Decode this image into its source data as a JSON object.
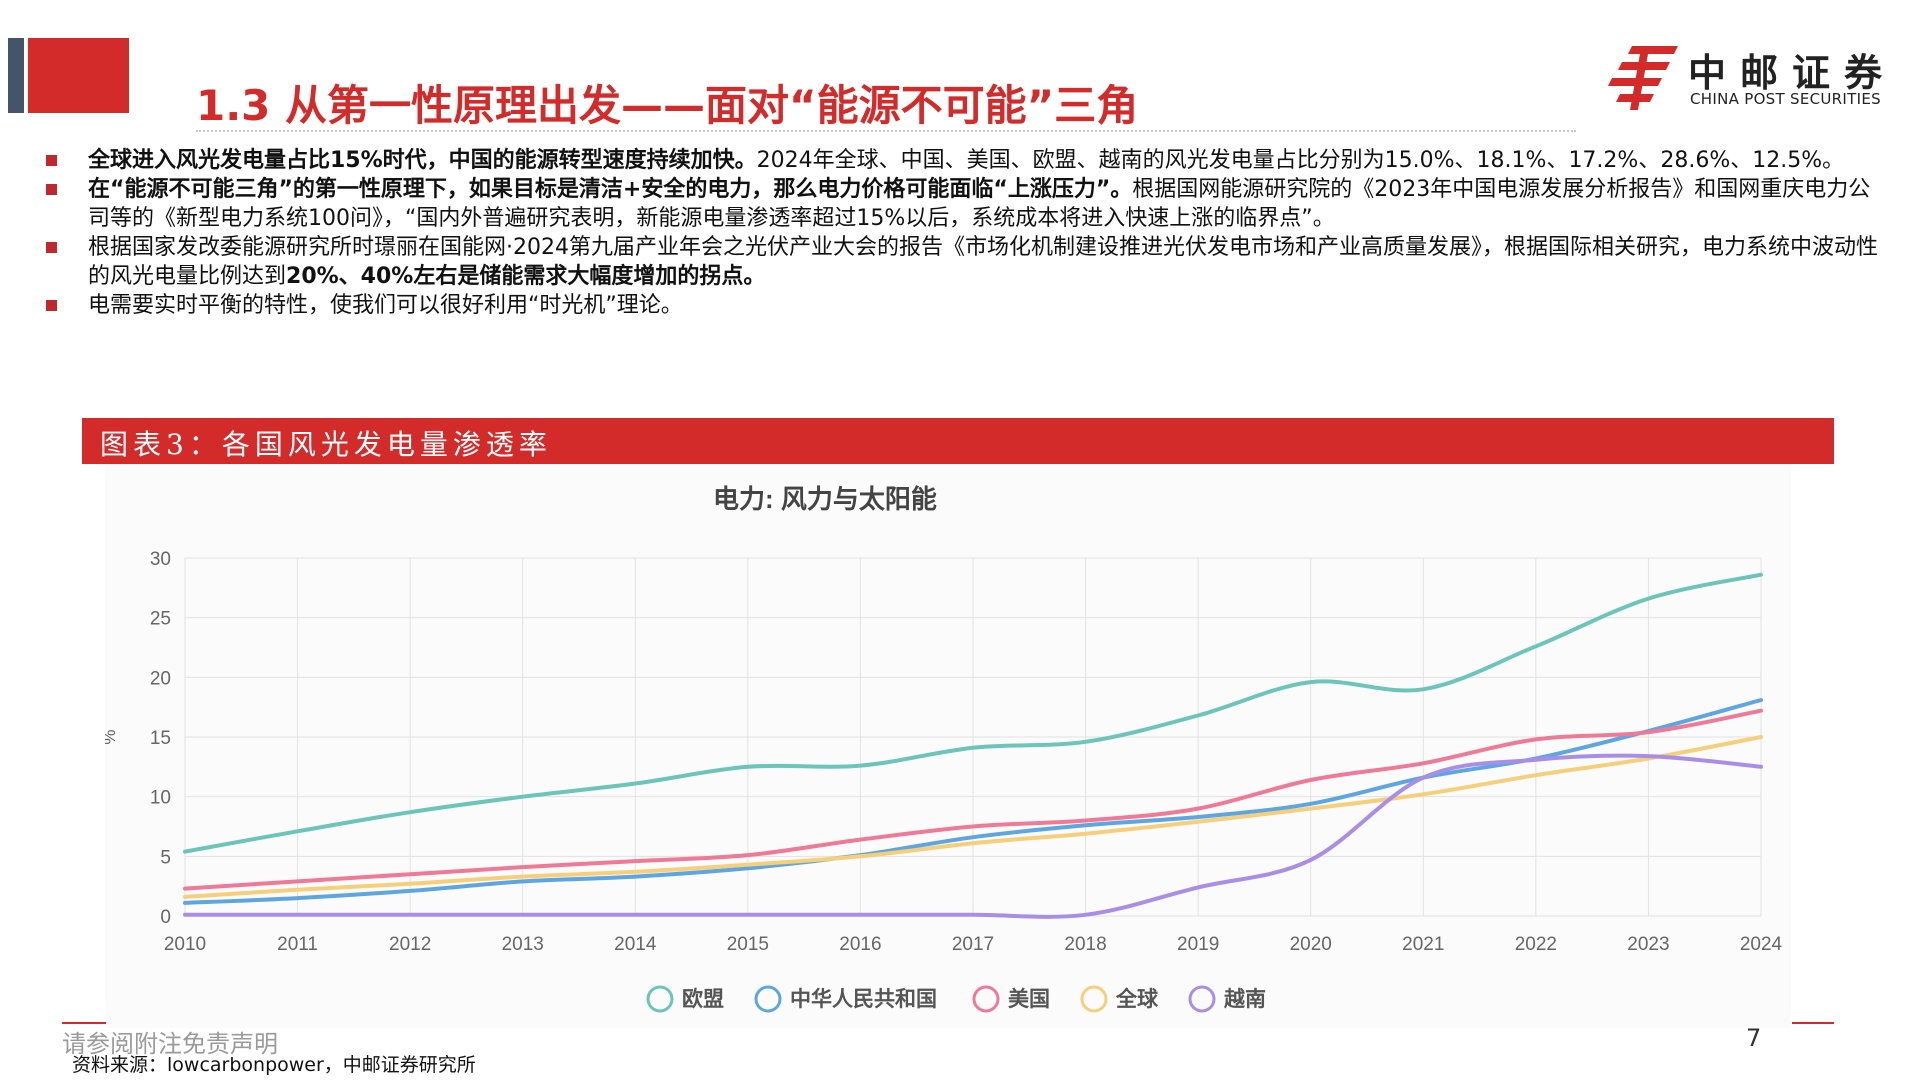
{
  "slide": {
    "title": "1.3 从第一性原理出发——面对“能源不可能”三角"
  },
  "logo": {
    "name_cn": "中邮证券",
    "name_en": "CHINA POST SECURITIES"
  },
  "bullets": [
    {
      "bold": "全球进入风光发电量占比15%时代，中国的能源转型速度持续加快。",
      "text": "2024年全球、中国、美国、欧盟、越南的风光发电量占比分别为15.0%、18.1%、17.2%、28.6%、12.5%。",
      "tail_bold": "",
      "tail": ""
    },
    {
      "bold": "在“能源不可能三角”的第一性原理下，如果目标是清洁+安全的电力，那么电力价格可能面临“上涨压力”。",
      "text": "根据国网能源研究院的《2023年中国电源发展分析报告》和国网重庆电力公司等的《新型电力系统100问》，“国内外普遍研究表明，新能源电量渗透率超过15%以后，系统成本将进入快速上涨的临界点”。",
      "tail_bold": "",
      "tail": ""
    },
    {
      "bold": "",
      "text": "根据国家发改委能源研究所时璟丽在国能网·2024第九届产业年会之光伏产业大会的报告《市场化机制建设推进光伏发电市场和产业高质量发展》，根据国际相关研究，电力系统中波动性的风光电量比例达到",
      "tail_bold": "20%、40%左右是储能需求大幅度增加的拐点。",
      "tail": ""
    },
    {
      "bold": "",
      "text": "电需要实时平衡的特性，使我们可以很好利用“时光机”理论。",
      "tail_bold": "",
      "tail": ""
    }
  ],
  "figure": {
    "title": "图表3：各国风光发电量渗透率"
  },
  "chart_data": {
    "type": "line",
    "title": "电力: 风力与太阳能",
    "xlabel": "",
    "ylabel": "%",
    "x": [
      2010,
      2011,
      2012,
      2013,
      2014,
      2015,
      2016,
      2017,
      2018,
      2019,
      2020,
      2021,
      2022,
      2023,
      2024
    ],
    "ylim": [
      0,
      30
    ],
    "yticks": [
      0,
      5,
      10,
      15,
      20,
      25,
      30
    ],
    "grid": true,
    "legend_position": "bottom",
    "series": [
      {
        "name": "欧盟",
        "color": "#6cc5b9",
        "values": [
          5.4,
          7.1,
          8.7,
          10.0,
          11.1,
          12.5,
          12.6,
          14.1,
          14.6,
          16.8,
          19.6,
          19.0,
          22.6,
          26.6,
          28.6
        ]
      },
      {
        "name": "中华人民共和国",
        "color": "#5ea6e2",
        "values": [
          1.1,
          1.5,
          2.1,
          2.9,
          3.3,
          4.0,
          5.1,
          6.6,
          7.6,
          8.3,
          9.4,
          11.6,
          13.2,
          15.5,
          18.1
        ]
      },
      {
        "name": "美国",
        "color": "#ee7a98",
        "values": [
          2.3,
          2.9,
          3.5,
          4.1,
          4.6,
          5.1,
          6.4,
          7.5,
          8.0,
          9.0,
          11.4,
          12.8,
          14.8,
          15.4,
          17.2
        ]
      },
      {
        "name": "全球",
        "color": "#f6cf7a",
        "values": [
          1.6,
          2.2,
          2.7,
          3.3,
          3.7,
          4.3,
          5.0,
          6.1,
          6.9,
          7.9,
          9.0,
          10.2,
          11.8,
          13.2,
          15.0
        ]
      },
      {
        "name": "越南",
        "color": "#a98ee8",
        "values": [
          0.1,
          0.1,
          0.1,
          0.1,
          0.1,
          0.1,
          0.1,
          0.1,
          0.1,
          2.4,
          4.7,
          11.6,
          13.1,
          13.4,
          12.5
        ]
      }
    ]
  },
  "footer": {
    "disclaimer": "请参阅附注免责声明",
    "source": "资料来源：lowcarbonpower，中邮证券研究所",
    "page": "7"
  },
  "colors": {
    "brand_red": "#d32a2a",
    "accent_grey": "#44546a"
  }
}
